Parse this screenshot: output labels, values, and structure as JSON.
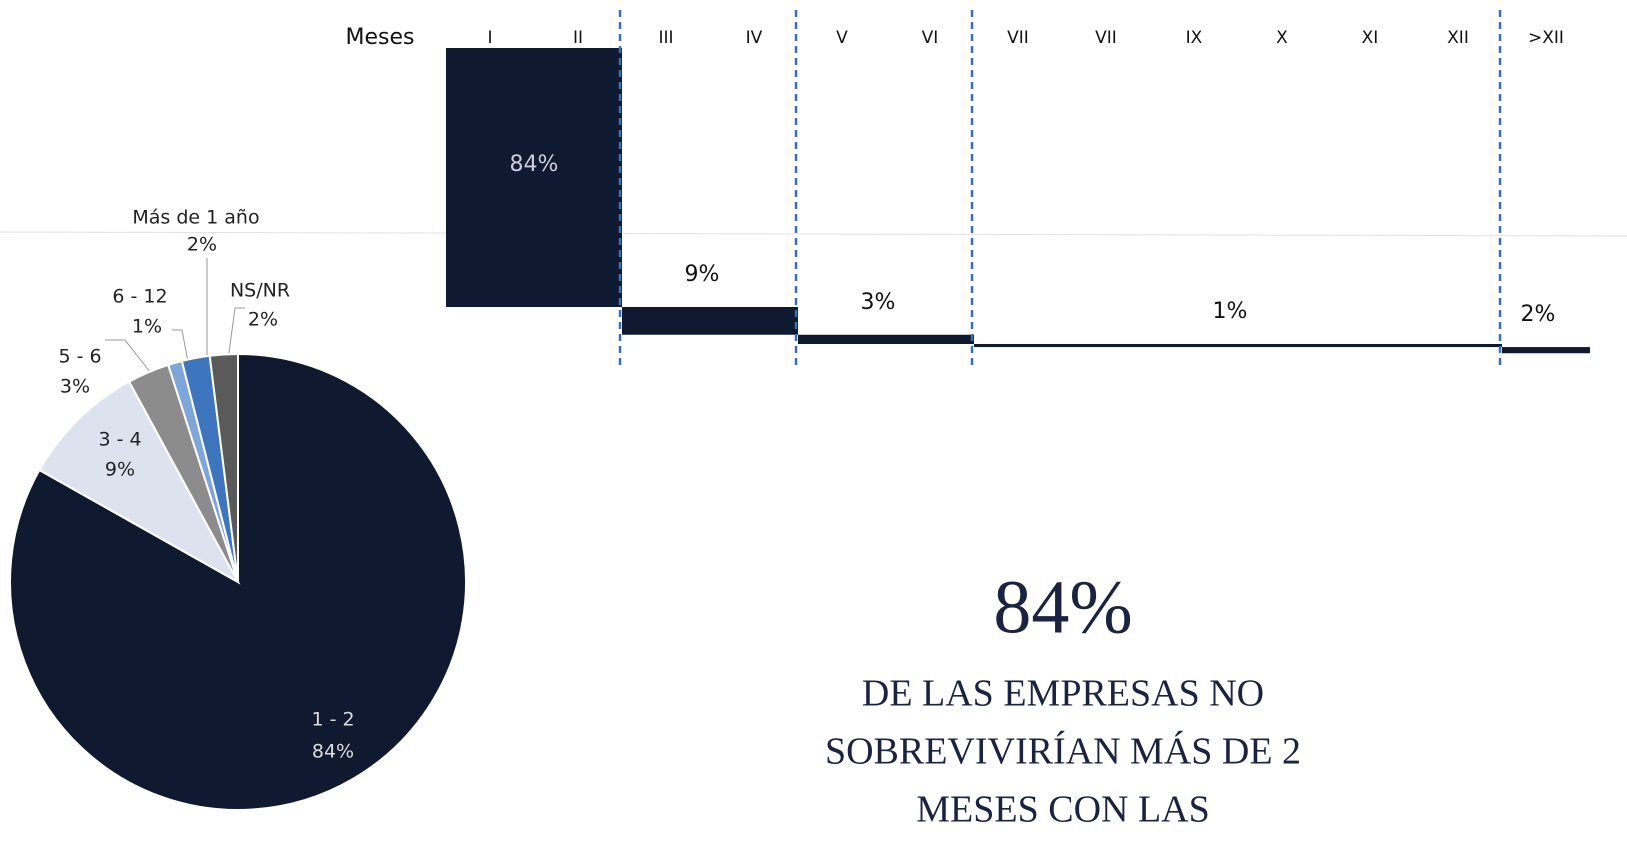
{
  "chart_data": [
    {
      "type": "pie",
      "categories": [
        "1 - 2",
        "3 - 4",
        "5 - 6",
        "6 - 12",
        "Más de 1 año",
        "NS/NR"
      ],
      "values": [
        84,
        9,
        3,
        1,
        2,
        2
      ],
      "value_labels": [
        "84%",
        "9%",
        "3%",
        "1%",
        "2%",
        "2%"
      ],
      "colors": [
        "#0f1a30",
        "#dde3ee",
        "#8c8c8c",
        "#7ea6d8",
        "#3d76bd",
        "#5a5a5a"
      ]
    },
    {
      "type": "waterfall",
      "x_label": "Meses",
      "color": "#0f1a30",
      "groups": [
        {
          "months": [
            "I",
            "II"
          ],
          "value": 84,
          "value_label": "84%"
        },
        {
          "months": [
            "III",
            "IV"
          ],
          "value": 9,
          "value_label": "9%"
        },
        {
          "months": [
            "V",
            "VI"
          ],
          "value": 3,
          "value_label": "3%"
        },
        {
          "months": [
            "VII",
            "VII",
            "IX",
            "X",
            "XI",
            "XII"
          ],
          "value": 1,
          "value_label": "1%"
        },
        {
          "months": [
            ">XII"
          ],
          "value": 2,
          "value_label": "2%"
        }
      ]
    }
  ],
  "callout": {
    "figure": "84%",
    "lines": [
      "DE LAS EMPRESAS NO",
      "SOBREVIVIRÍAN MÁS DE 2",
      "MESES CON LAS"
    ]
  }
}
